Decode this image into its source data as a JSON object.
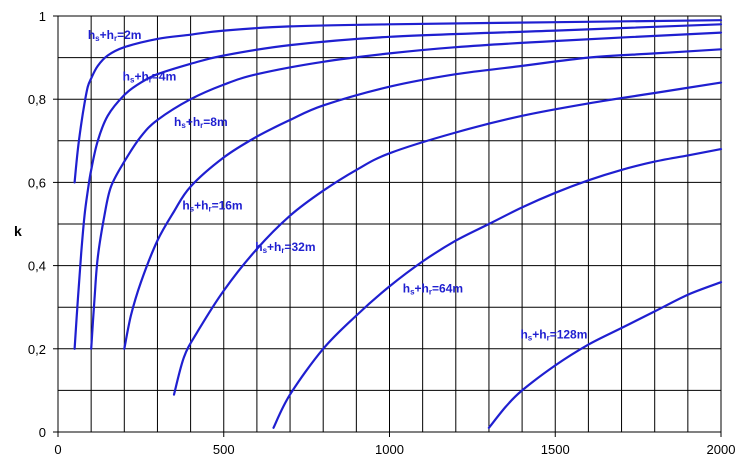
{
  "chart_data": {
    "type": "line",
    "title": "",
    "xlabel": "",
    "ylabel": "k",
    "xlim": [
      0,
      2000
    ],
    "ylim": [
      0,
      1
    ],
    "x_ticks": [
      {
        "value": 0,
        "label": "0"
      },
      {
        "value": 500,
        "label": "500"
      },
      {
        "value": 1000,
        "label": "1000"
      },
      {
        "value": 1500,
        "label": "1500"
      },
      {
        "value": 2000,
        "label": "2000"
      }
    ],
    "y_ticks": [
      {
        "value": 0,
        "label": "0"
      },
      {
        "value": 0.2,
        "label": "0,2"
      },
      {
        "value": 0.4,
        "label": "0,4"
      },
      {
        "value": 0.6,
        "label": "0,6"
      },
      {
        "value": 0.8,
        "label": "0,8"
      },
      {
        "value": 1,
        "label": "1"
      }
    ],
    "x_grid_step": 100,
    "y_grid_step": 0.1,
    "grid": true,
    "line_color": "#1f1fd0",
    "series": [
      {
        "label": {
          "a": "h",
          "s1": "s",
          "b": "+h",
          "s2": "r",
          "c": "=2m"
        },
        "label_at": [
          90,
          0.945
        ],
        "points": [
          [
            50,
            0.6
          ],
          [
            60,
            0.68
          ],
          [
            70,
            0.74
          ],
          [
            80,
            0.79
          ],
          [
            90,
            0.83
          ],
          [
            100,
            0.85
          ],
          [
            120,
            0.88
          ],
          [
            150,
            0.905
          ],
          [
            200,
            0.925
          ],
          [
            300,
            0.945
          ],
          [
            400,
            0.955
          ],
          [
            500,
            0.965
          ],
          [
            700,
            0.975
          ],
          [
            1000,
            0.98
          ],
          [
            1500,
            0.985
          ],
          [
            2000,
            0.99
          ]
        ]
      },
      {
        "label": {
          "a": "h",
          "s1": "s",
          "b": "+h",
          "s2": "r",
          "c": "=4m"
        },
        "label_at": [
          195,
          0.845
        ],
        "points": [
          [
            50,
            0.2
          ],
          [
            60,
            0.32
          ],
          [
            70,
            0.43
          ],
          [
            80,
            0.52
          ],
          [
            90,
            0.58
          ],
          [
            100,
            0.63
          ],
          [
            120,
            0.7
          ],
          [
            150,
            0.76
          ],
          [
            200,
            0.81
          ],
          [
            250,
            0.84
          ],
          [
            300,
            0.86
          ],
          [
            400,
            0.885
          ],
          [
            500,
            0.905
          ],
          [
            700,
            0.93
          ],
          [
            1000,
            0.95
          ],
          [
            1500,
            0.965
          ],
          [
            2000,
            0.98
          ]
        ]
      },
      {
        "label": {
          "a": "h",
          "s1": "s",
          "b": "+h",
          "s2": "r",
          "c": "=8m"
        },
        "label_at": [
          350,
          0.735
        ],
        "points": [
          [
            100,
            0.2
          ],
          [
            110,
            0.32
          ],
          [
            120,
            0.42
          ],
          [
            140,
            0.52
          ],
          [
            160,
            0.59
          ],
          [
            200,
            0.65
          ],
          [
            250,
            0.71
          ],
          [
            300,
            0.75
          ],
          [
            400,
            0.8
          ],
          [
            500,
            0.835
          ],
          [
            600,
            0.86
          ],
          [
            800,
            0.89
          ],
          [
            1000,
            0.91
          ],
          [
            1200,
            0.925
          ],
          [
            1500,
            0.94
          ],
          [
            2000,
            0.96
          ]
        ]
      },
      {
        "label": {
          "a": "h",
          "s1": "s",
          "b": "+h",
          "s2": "r",
          "c": "=16m"
        },
        "label_at": [
          375,
          0.535
        ],
        "points": [
          [
            200,
            0.2
          ],
          [
            220,
            0.28
          ],
          [
            250,
            0.36
          ],
          [
            300,
            0.46
          ],
          [
            350,
            0.53
          ],
          [
            400,
            0.59
          ],
          [
            500,
            0.66
          ],
          [
            600,
            0.71
          ],
          [
            700,
            0.75
          ],
          [
            800,
            0.785
          ],
          [
            1000,
            0.83
          ],
          [
            1200,
            0.86
          ],
          [
            1400,
            0.88
          ],
          [
            1600,
            0.9
          ],
          [
            1800,
            0.91
          ],
          [
            2000,
            0.92
          ]
        ]
      },
      {
        "label": {
          "a": "h",
          "s1": "s",
          "b": "+h",
          "s2": "r",
          "c": "=32m"
        },
        "label_at": [
          595,
          0.435
        ],
        "points": [
          [
            350,
            0.09
          ],
          [
            380,
            0.18
          ],
          [
            420,
            0.24
          ],
          [
            500,
            0.34
          ],
          [
            600,
            0.44
          ],
          [
            700,
            0.52
          ],
          [
            800,
            0.58
          ],
          [
            900,
            0.63
          ],
          [
            1000,
            0.67
          ],
          [
            1200,
            0.72
          ],
          [
            1400,
            0.76
          ],
          [
            1600,
            0.79
          ],
          [
            1800,
            0.815
          ],
          [
            2000,
            0.84
          ]
        ]
      },
      {
        "label": {
          "a": "h",
          "s1": "s",
          "b": "+h",
          "s2": "r",
          "c": "=64m"
        },
        "label_at": [
          1040,
          0.335
        ],
        "points": [
          [
            650,
            0.01
          ],
          [
            700,
            0.09
          ],
          [
            800,
            0.2
          ],
          [
            900,
            0.28
          ],
          [
            1000,
            0.35
          ],
          [
            1100,
            0.41
          ],
          [
            1200,
            0.46
          ],
          [
            1300,
            0.5
          ],
          [
            1400,
            0.54
          ],
          [
            1500,
            0.575
          ],
          [
            1600,
            0.605
          ],
          [
            1700,
            0.63
          ],
          [
            1800,
            0.65
          ],
          [
            1900,
            0.665
          ],
          [
            2000,
            0.68
          ]
        ]
      },
      {
        "label": {
          "a": "h",
          "s1": "s",
          "b": "+h",
          "s2": "r",
          "c": "=128m"
        },
        "label_at": [
          1395,
          0.225
        ],
        "points": [
          [
            1300,
            0.01
          ],
          [
            1350,
            0.06
          ],
          [
            1400,
            0.1
          ],
          [
            1500,
            0.16
          ],
          [
            1600,
            0.21
          ],
          [
            1700,
            0.25
          ],
          [
            1800,
            0.29
          ],
          [
            1900,
            0.33
          ],
          [
            2000,
            0.36
          ]
        ]
      }
    ]
  }
}
